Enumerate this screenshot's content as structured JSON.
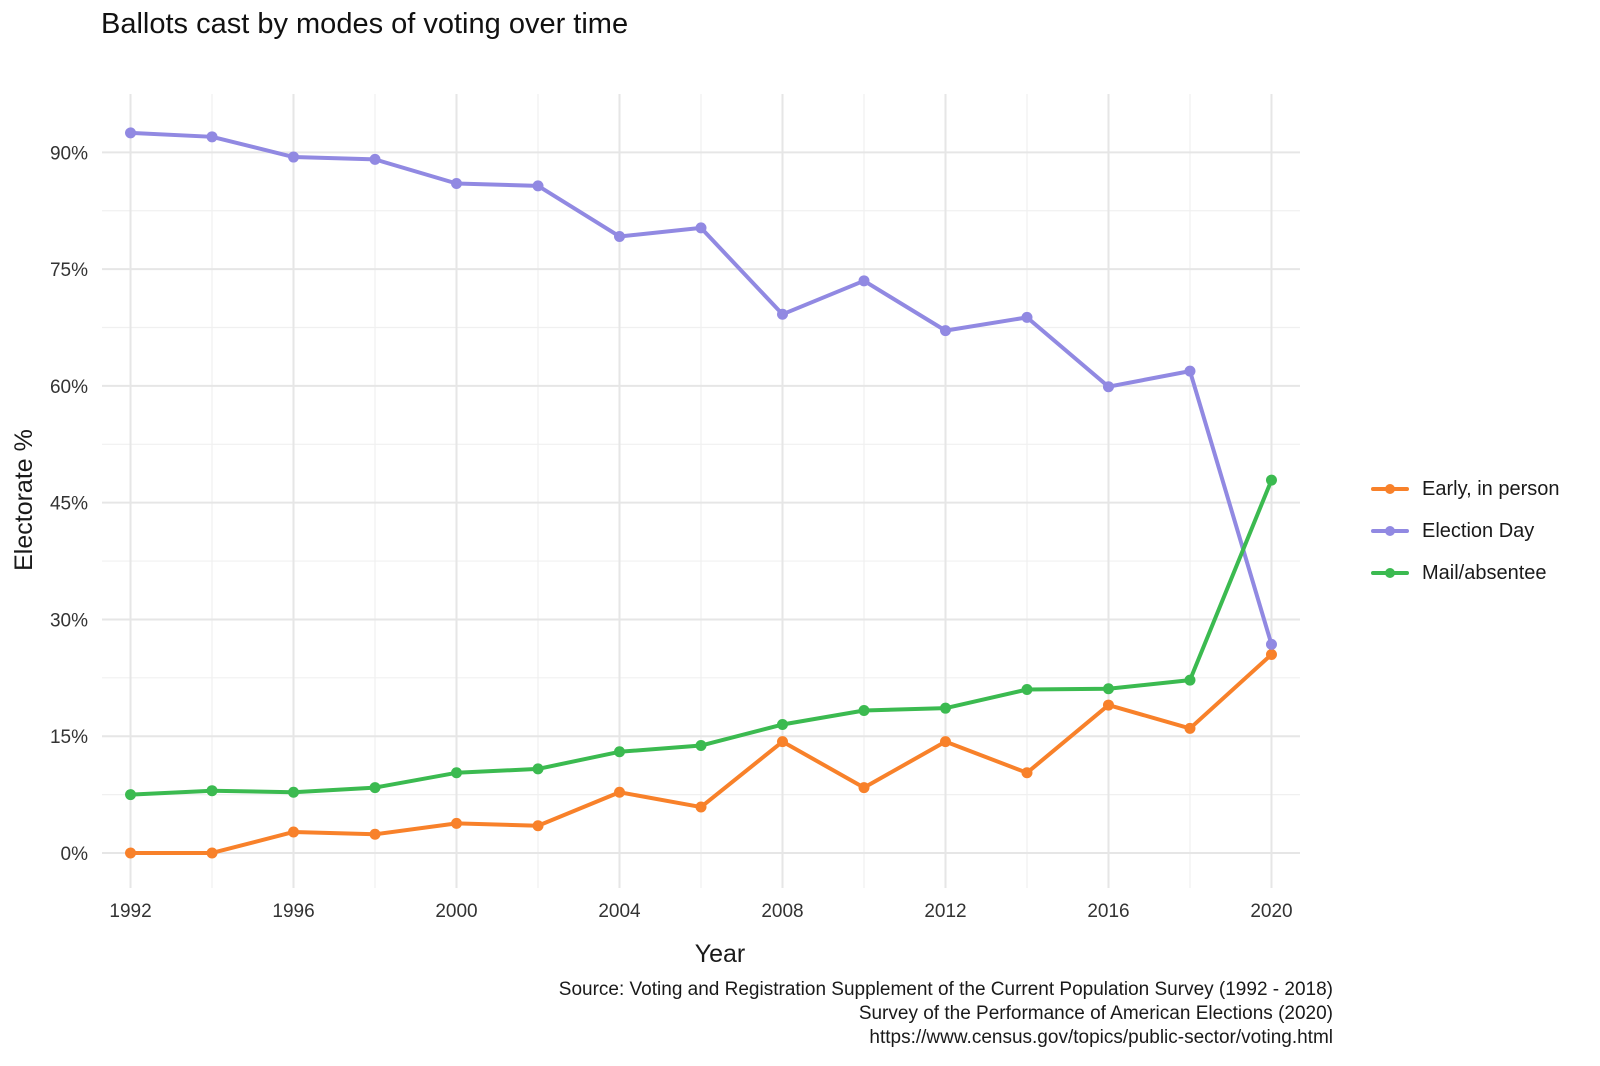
{
  "chart_data": {
    "type": "line",
    "title": "Ballots cast by modes of voting over time",
    "xlabel": "Year",
    "ylabel": "Electorate %",
    "x": [
      1992,
      1994,
      1996,
      1998,
      2000,
      2002,
      2004,
      2006,
      2008,
      2010,
      2012,
      2014,
      2016,
      2018,
      2020
    ],
    "x_ticks": [
      "1992",
      "1996",
      "2000",
      "2004",
      "2008",
      "2012",
      "2016",
      "2020"
    ],
    "y_ticks": [
      "0%",
      "15%",
      "30%",
      "45%",
      "60%",
      "75%",
      "90%"
    ],
    "xlim": [
      1991.3,
      2020.7
    ],
    "ylim": [
      -4.5,
      97.5
    ],
    "grid": true,
    "legend_position": "right",
    "series": [
      {
        "name": "Early, in person",
        "color": "#F8812A",
        "values": [
          0.0,
          0.0,
          2.7,
          2.4,
          3.8,
          3.5,
          7.8,
          5.9,
          14.3,
          8.4,
          14.3,
          10.3,
          19.0,
          16.0,
          25.5
        ]
      },
      {
        "name": "Election Day",
        "color": "#9189E2",
        "values": [
          92.5,
          92.0,
          89.4,
          89.1,
          86.0,
          85.7,
          79.2,
          80.3,
          69.2,
          73.5,
          67.1,
          68.8,
          59.9,
          61.9,
          26.8
        ]
      },
      {
        "name": "Mail/absentee",
        "color": "#3BBA50",
        "values": [
          7.5,
          8.0,
          7.8,
          8.4,
          10.3,
          10.8,
          13.0,
          13.8,
          16.5,
          18.3,
          18.6,
          21.0,
          21.1,
          22.2,
          47.9
        ]
      }
    ]
  },
  "caption": {
    "line1": "Source: Voting and Registration Supplement of the Current Population Survey (1992 - 2018)",
    "line2": "Survey of the Performance of American Elections (2020)",
    "line3": "https://www.census.gov/topics/public-sector/voting.html"
  }
}
